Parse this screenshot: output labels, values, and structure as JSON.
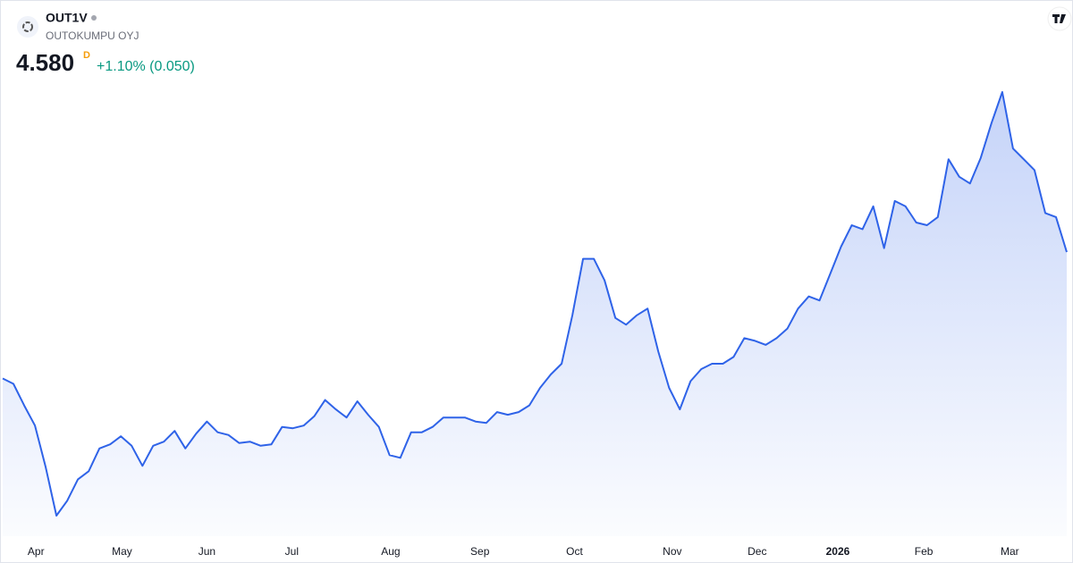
{
  "header": {
    "symbol": "OUT1V",
    "name": "OUTOKUMPU OYJ",
    "price": "4.580",
    "period": "D",
    "change": "+1.10% (0.050)"
  },
  "chart_data": {
    "type": "area",
    "color": "#2f63e8",
    "values": [
      3.64,
      3.6,
      3.44,
      3.29,
      2.98,
      2.62,
      2.73,
      2.89,
      2.95,
      3.12,
      3.15,
      3.21,
      3.14,
      2.99,
      3.14,
      3.17,
      3.25,
      3.12,
      3.23,
      3.32,
      3.24,
      3.22,
      3.16,
      3.17,
      3.14,
      3.15,
      3.28,
      3.27,
      3.29,
      3.36,
      3.48,
      3.41,
      3.35,
      3.47,
      3.37,
      3.28,
      3.07,
      3.05,
      3.24,
      3.24,
      3.28,
      3.35,
      3.35,
      3.35,
      3.32,
      3.31,
      3.39,
      3.37,
      3.39,
      3.44,
      3.57,
      3.67,
      3.75,
      4.11,
      4.53,
      4.53,
      4.37,
      4.09,
      4.04,
      4.11,
      4.16,
      3.84,
      3.57,
      3.41,
      3.62,
      3.71,
      3.75,
      3.75,
      3.8,
      3.94,
      3.92,
      3.89,
      3.94,
      4.01,
      4.16,
      4.25,
      4.22,
      4.42,
      4.62,
      4.78,
      4.75,
      4.92,
      4.61,
      4.96,
      4.92,
      4.8,
      4.78,
      4.84,
      5.27,
      5.14,
      5.09,
      5.28,
      5.54,
      5.77,
      5.35,
      5.27,
      5.19,
      4.87,
      4.84,
      4.58
    ],
    "xticks": [
      {
        "value": 3.1,
        "label": "Apr"
      },
      {
        "value": 11.1,
        "label": "May"
      },
      {
        "value": 19,
        "label": "Jun"
      },
      {
        "value": 26.9,
        "label": "Jul"
      },
      {
        "value": 36.1,
        "label": "Aug"
      },
      {
        "value": 44.4,
        "label": "Sep"
      },
      {
        "value": 53.2,
        "label": "Oct"
      },
      {
        "value": 62.3,
        "label": "Nov"
      },
      {
        "value": 70.2,
        "label": "Dec"
      },
      {
        "value": 77.7,
        "label": "2026"
      },
      {
        "value": 85.7,
        "label": "Feb"
      },
      {
        "value": 93.7,
        "label": "Mar"
      }
    ]
  }
}
